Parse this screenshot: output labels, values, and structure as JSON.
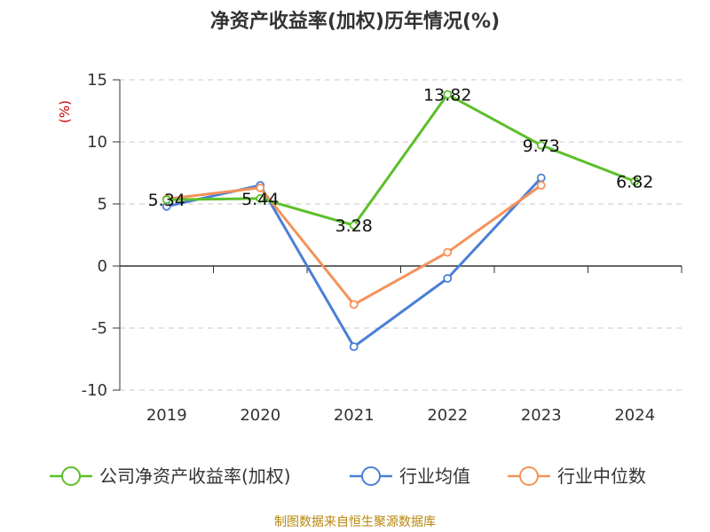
{
  "chart_data": {
    "type": "line",
    "title": "净资产收益率(加权)历年情况(%)",
    "ylabel": "(%)",
    "ylim": [
      -10,
      15
    ],
    "yticks": [
      15,
      10,
      5,
      0,
      -5,
      -10
    ],
    "categories": [
      "2019",
      "2020",
      "2021",
      "2022",
      "2023",
      "2024"
    ],
    "grid": true,
    "legend_position": "bottom",
    "series": [
      {
        "name": "公司净资产收益率(加权)",
        "color": "#5cbf2a",
        "values": [
          5.34,
          5.44,
          3.28,
          13.82,
          9.73,
          6.82
        ],
        "labels": [
          "5.34",
          "5.44",
          "3.28",
          "13.82",
          "9.73",
          "6.82"
        ]
      },
      {
        "name": "行业均值",
        "color": "#4a7fd6",
        "values": [
          4.8,
          6.5,
          -6.5,
          -1.0,
          7.1,
          null
        ]
      },
      {
        "name": "行业中位数",
        "color": "#f4925a",
        "values": [
          5.4,
          6.3,
          -3.1,
          1.1,
          6.5,
          null
        ]
      }
    ]
  },
  "footer": {
    "source": "制图数据来自恒生聚源数据库"
  }
}
